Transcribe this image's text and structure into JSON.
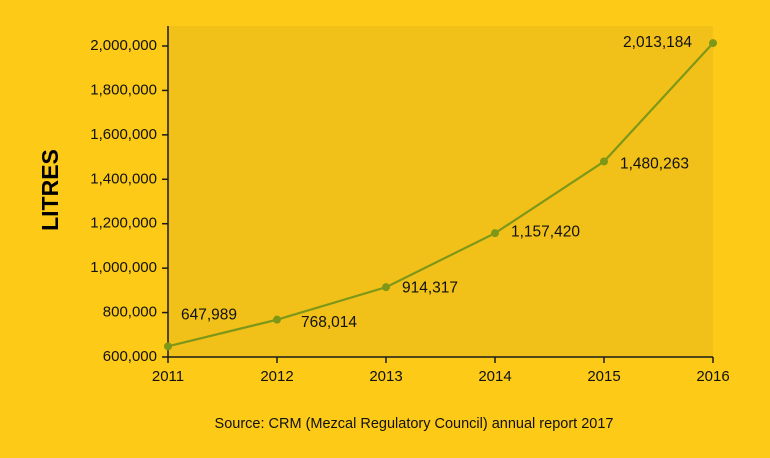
{
  "chart_data": {
    "type": "line",
    "title": "",
    "xlabel": "",
    "ylabel": "LITRES",
    "categories": [
      "2011",
      "2012",
      "2013",
      "2014",
      "2015",
      "2016"
    ],
    "series": [
      {
        "values": [
          647989,
          768014,
          914317,
          1157420,
          1480263,
          2013184
        ],
        "labels": [
          "647,989",
          "768,014",
          "914,317",
          "1,157,420",
          "1,480,263",
          "2,013,184"
        ]
      }
    ],
    "y_ticks": [
      600000,
      800000,
      1000000,
      1200000,
      1400000,
      1600000,
      1800000,
      2000000
    ],
    "y_tick_labels": [
      "600,000",
      "800,000",
      "1,000,000",
      "1,200,000",
      "1,400,000",
      "1,600,000",
      "1,800,000",
      "2,000,000"
    ],
    "ylim": [
      600000,
      2050000
    ],
    "grid": false,
    "legend": "none",
    "colors": {
      "page_background": "#FDCB17",
      "plot_background": "#F1C119",
      "line": "#7E9719",
      "axis": "#1A1A1A"
    }
  },
  "source_note": "Source: CRM (Mezcal Regulatory Council) annual report 2017"
}
